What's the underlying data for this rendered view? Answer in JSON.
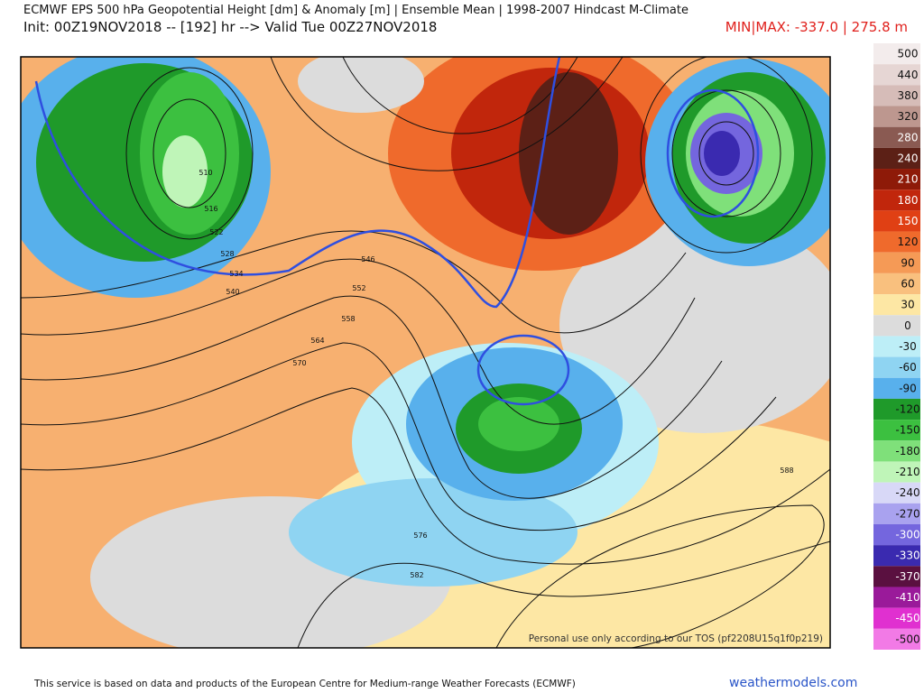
{
  "header": {
    "title": "ECMWF EPS 500 hPa Geopotential Height [dm] & Anomaly [m] | Ensemble Mean | 1998-2007 Hindcast M-Climate",
    "init": "Init: 00Z19NOV2018 -- [192] hr --> Valid Tue 00Z27NOV2018",
    "minmax": "MIN|MAX: -337.0 | 275.8 m"
  },
  "legend": {
    "items": [
      {
        "label": 500,
        "color": "#f3ecec"
      },
      {
        "label": 440,
        "color": "#e6d6d4"
      },
      {
        "label": 380,
        "color": "#d6bcb8"
      },
      {
        "label": 320,
        "color": "#bd978f"
      },
      {
        "label": 280,
        "color": "#8a5a52"
      },
      {
        "label": 240,
        "color": "#5c2016"
      },
      {
        "label": 210,
        "color": "#8e1a08"
      },
      {
        "label": 180,
        "color": "#c1260c"
      },
      {
        "label": 150,
        "color": "#e04014"
      },
      {
        "label": 120,
        "color": "#ef6a2c"
      },
      {
        "label": 90,
        "color": "#f59a56"
      },
      {
        "label": 60,
        "color": "#f9c07e"
      },
      {
        "label": 30,
        "color": "#fde7a4"
      },
      {
        "label": 0,
        "color": "#dcdcdc"
      },
      {
        "label": -30,
        "color": "#bdeef7"
      },
      {
        "label": -60,
        "color": "#8fd4f2"
      },
      {
        "label": -90,
        "color": "#58b0ec"
      },
      {
        "label": -120,
        "color": "#1f9a2a"
      },
      {
        "label": -150,
        "color": "#3cc040"
      },
      {
        "label": -180,
        "color": "#7fe07a"
      },
      {
        "label": -210,
        "color": "#bff5b8"
      },
      {
        "label": -240,
        "color": "#d8d8f7"
      },
      {
        "label": -270,
        "color": "#a9a2ef"
      },
      {
        "label": -300,
        "color": "#7466de"
      },
      {
        "label": -330,
        "color": "#3a2ab0"
      },
      {
        "label": -370,
        "color": "#5a1040"
      },
      {
        "label": -410,
        "color": "#9a1a9a"
      },
      {
        "label": -450,
        "color": "#e030d0"
      },
      {
        "label": -500,
        "color": "#f27ae6"
      }
    ]
  },
  "map": {
    "contour_labels": [
      510,
      516,
      522,
      528,
      534,
      540,
      546,
      552,
      558,
      564,
      570,
      576,
      582,
      588
    ],
    "watermark": "Personal use only according to our TOS (pf2208U15q1f0p219)"
  },
  "footer": {
    "credit": "This service is based on data and products of the European Centre for Medium-range Weather Forecasts (ECMWF)",
    "site": "weathermodels.com"
  }
}
